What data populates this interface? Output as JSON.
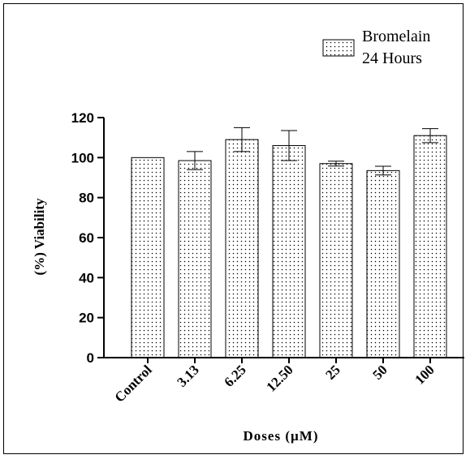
{
  "chart_data": {
    "type": "bar",
    "categories": [
      "Control",
      "3.13",
      "6.25",
      "12.50",
      "25",
      "50",
      "100"
    ],
    "series": [
      {
        "name": "Bromelain 24 Hours",
        "values": [
          100,
          98.5,
          109,
          106,
          97,
          93.5,
          111
        ],
        "errors": [
          0,
          4.5,
          6,
          7.5,
          1.2,
          2.2,
          3.5
        ]
      }
    ],
    "legend_lines": [
      "Bromelain",
      "24 Hours"
    ],
    "legend_position": "top-right",
    "xlabel": "Doses (µM)",
    "ylabel": "(%)  Viability",
    "ylim": [
      0,
      120
    ],
    "yticks": [
      0,
      20,
      40,
      60,
      80,
      100,
      120
    ],
    "yticklabels": [
      "0",
      "20",
      "40",
      "60",
      "80",
      "100",
      "120"
    ],
    "grid": false,
    "bar_pattern": "dotted",
    "colors": {
      "bar_fill": "#ffffff",
      "bar_stroke": "#000000",
      "dots": "#000000"
    }
  }
}
